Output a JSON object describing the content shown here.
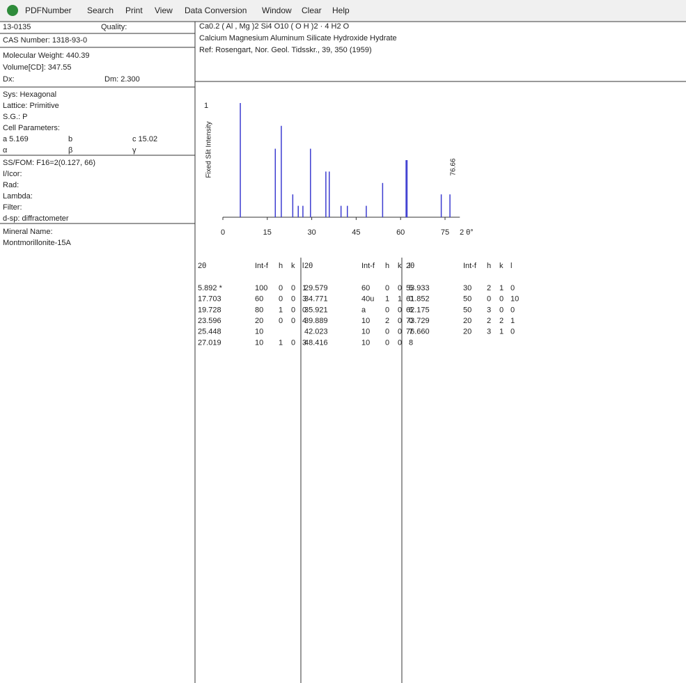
{
  "menu": [
    "PDFNumber",
    "Search",
    "Print",
    "View",
    "Data Conversion",
    "Window",
    "Clear",
    "Help"
  ],
  "card": {
    "number": "13-0135",
    "quality": "Quality:",
    "cas": "CAS Number:   1318-93-0",
    "mol_weight": "Molecular Weight:  440.39",
    "volume": "Volume[CD]:   347.55",
    "dx": "Dx:",
    "dm": "Dm: 2.300",
    "sys": "Sys: Hexagonal",
    "lattice": "Lattice: Primitive",
    "sg": "S.G.: P",
    "cell": "Cell Parameters:",
    "a": "a 5.169",
    "b": "b",
    "c": "c 15.02",
    "alpha": "α",
    "beta": "β",
    "gamma": "γ",
    "ssfom": "SS/FOM: F16=2(0.127, 66)",
    "icor": "I/Icor:",
    "rad": "Rad:",
    "lambda": "Lambda:",
    "filter": "Filter:",
    "dsp": "d-sp: diffractometer",
    "mineral": "Mineral Name:",
    "mineral_name": "Montmorillonite-15A"
  },
  "header": {
    "formula": "Ca0.2 ( Al , Mg )2 Si4 O10 ( O H )2 · 4 H2 O",
    "name": "Calcium Magnesium Aluminum Silicate Hydroxide Hydrate",
    "ref": "Ref: Rosengart, Nor. Geol. Tidsskr., 39, 350 (1959)"
  },
  "pattern": {
    "y_label": "Fixed Slit Intensity",
    "y_top": "1",
    "x_label": "2 θ°",
    "peak_label": "76.66",
    "xlim": [
      0,
      80
    ],
    "xticks": [
      0,
      15,
      30,
      45,
      60,
      75
    ],
    "ylim": [
      0,
      100
    ],
    "x": [
      5.892,
      17.703,
      19.728,
      23.596,
      25.448,
      27.019,
      29.579,
      34.771,
      35.921,
      39.889,
      42.023,
      48.416,
      53.933,
      61.852,
      62.175,
      73.729,
      76.66
    ],
    "values": [
      100,
      60,
      80,
      20,
      10,
      10,
      60,
      40,
      40,
      10,
      10,
      10,
      30,
      50,
      50,
      20,
      20
    ],
    "color": "#3b3bd0"
  },
  "table": {
    "headers": [
      "2θ",
      "Int-f",
      "h",
      "k",
      "l"
    ],
    "columns": [
      [
        [
          "5.892 *",
          "100",
          "0",
          "0",
          "1"
        ],
        [
          "17.703",
          "60",
          "0",
          "0",
          "3"
        ],
        [
          "19.728",
          "80",
          "1",
          "0",
          "0"
        ],
        [
          "23.596",
          "20",
          "0",
          "0",
          "4"
        ],
        [
          "25.448",
          "10"
        ],
        [
          "27.019",
          "10",
          "1",
          "0",
          "3"
        ]
      ],
      [
        [
          "29.579",
          "60",
          "0",
          "0",
          "5"
        ],
        [
          "34.771",
          "40u",
          "1",
          "1",
          "0"
        ],
        [
          "35.921",
          "a",
          "0",
          "0",
          "6"
        ],
        [
          "39.889",
          "10",
          "2",
          "0",
          "0"
        ],
        [
          "42.023",
          "10",
          "0",
          "0",
          "7"
        ],
        [
          "48.416",
          "10",
          "0",
          "0",
          "8"
        ]
      ],
      [
        [
          "53.933",
          "30",
          "2",
          "1",
          "0"
        ],
        [
          "61.852",
          "50",
          "0",
          "0",
          "10"
        ],
        [
          "62.175",
          "50",
          "3",
          "0",
          "0"
        ],
        [
          "73.729",
          "20",
          "2",
          "2",
          "1"
        ],
        [
          "76.660",
          "20",
          "3",
          "1",
          "0"
        ]
      ]
    ]
  }
}
